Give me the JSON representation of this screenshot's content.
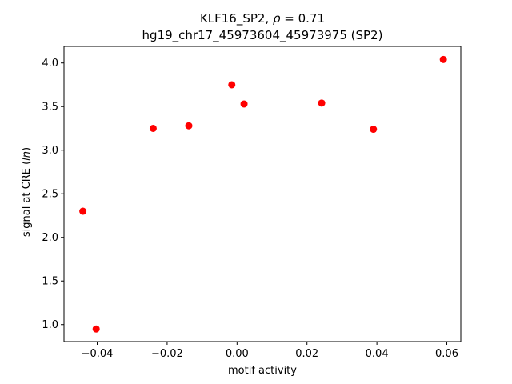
{
  "chart_data": {
    "type": "scatter",
    "title_line1_prefix": "KLF16_SP2, ",
    "title_line1_rho": "ρ",
    "title_line1_suffix": " = 0.71",
    "title_line2": "hg19_chr17_45973604_45973975 (SP2)",
    "xlabel": "motif activity",
    "ylabel_prefix": "signal at CRE (",
    "ylabel_italic": "ln",
    "ylabel_suffix": ")",
    "xlim": [
      -0.0495,
      0.064
    ],
    "ylim": [
      0.805,
      4.19
    ],
    "x_ticks": [
      -0.04,
      -0.02,
      0.0,
      0.02,
      0.04,
      0.06
    ],
    "x_tick_labels": [
      "−0.04",
      "−0.02",
      "0.00",
      "0.02",
      "0.04",
      "0.06"
    ],
    "y_ticks": [
      1.0,
      1.5,
      2.0,
      2.5,
      3.0,
      3.5,
      4.0
    ],
    "y_tick_labels": [
      "1.0",
      "1.5",
      "2.0",
      "2.5",
      "3.0",
      "3.5",
      "4.0"
    ],
    "point_color": "#ff0000",
    "grid": false,
    "points": [
      {
        "x": -0.0441,
        "y": 2.3
      },
      {
        "x": -0.0403,
        "y": 0.95
      },
      {
        "x": -0.024,
        "y": 3.25
      },
      {
        "x": -0.0138,
        "y": 3.28
      },
      {
        "x": -0.0015,
        "y": 3.75
      },
      {
        "x": 0.002,
        "y": 3.53
      },
      {
        "x": 0.0242,
        "y": 3.54
      },
      {
        "x": 0.039,
        "y": 3.24
      },
      {
        "x": 0.059,
        "y": 4.04
      }
    ]
  }
}
